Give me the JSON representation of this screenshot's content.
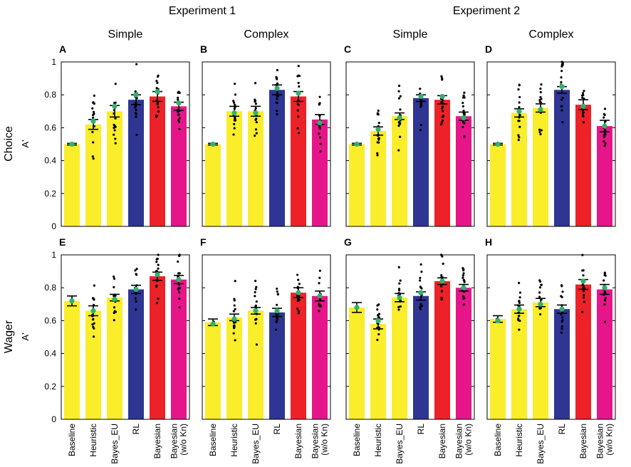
{
  "figure": {
    "experiment_titles": [
      "Experiment 1",
      "Experiment 2"
    ],
    "row_labels": [
      "Choice",
      "Wager"
    ],
    "y_axis_label": "A'",
    "y_ticks": [
      "0",
      "0.2",
      "0.4",
      "0.6",
      "0.8",
      "1"
    ],
    "categories": [
      "Baseline",
      "Heuristic",
      "Bayes_EU",
      "RL",
      "Bayesian",
      "Bayesian (w/o Kn)"
    ],
    "category_lines": [
      [
        "Baseline"
      ],
      [
        "Heuristic"
      ],
      [
        "Bayes_EU"
      ],
      [
        "RL"
      ],
      [
        "Bayesian"
      ],
      [
        "Bayesian",
        "(w/o Kn)"
      ]
    ]
  },
  "colors": {
    "yellow": "#FAED2A",
    "blue": "#2E3592",
    "red": "#EC2228",
    "magenta": "#E6168A",
    "green_marker": "#2DB36B",
    "dots": "#000000"
  },
  "chart_data": [
    {
      "panel": "A",
      "type": "bar",
      "experiment": "Experiment 1",
      "condition": "Simple",
      "measure": "Choice",
      "ylim": [
        0,
        1
      ],
      "ylabel": "A'",
      "categories": [
        "Baseline",
        "Heuristic",
        "Bayes_EU",
        "RL",
        "Bayesian",
        "Bayesian (w/o Kn)"
      ],
      "values": [
        0.5,
        0.62,
        0.7,
        0.77,
        0.79,
        0.73
      ],
      "errors": [
        0.005,
        0.03,
        0.035,
        0.03,
        0.03,
        0.025
      ],
      "medians": [
        0.5,
        0.64,
        0.73,
        0.8,
        0.82,
        0.75
      ]
    },
    {
      "panel": "B",
      "type": "bar",
      "experiment": "Experiment 1",
      "condition": "Complex",
      "measure": "Choice",
      "ylim": [
        0,
        1
      ],
      "ylabel": "A'",
      "categories": [
        "Baseline",
        "Heuristic",
        "Bayes_EU",
        "RL",
        "Bayesian",
        "Bayesian (w/o Kn)"
      ],
      "values": [
        0.5,
        0.7,
        0.7,
        0.83,
        0.79,
        0.65
      ],
      "errors": [
        0.005,
        0.03,
        0.03,
        0.03,
        0.03,
        0.03
      ],
      "medians": [
        0.5,
        0.69,
        0.69,
        0.84,
        0.81,
        0.63
      ]
    },
    {
      "panel": "C",
      "type": "bar",
      "experiment": "Experiment 2",
      "condition": "Simple",
      "measure": "Choice",
      "ylim": [
        0,
        1
      ],
      "ylabel": "A'",
      "categories": [
        "Baseline",
        "Heuristic",
        "Bayes_EU",
        "RL",
        "Bayesian",
        "Bayesian (w/o Kn)"
      ],
      "values": [
        0.5,
        0.58,
        0.67,
        0.78,
        0.77,
        0.67
      ],
      "errors": [
        0.005,
        0.025,
        0.02,
        0.02,
        0.025,
        0.025
      ],
      "medians": [
        0.5,
        0.59,
        0.66,
        0.79,
        0.79,
        0.66
      ]
    },
    {
      "panel": "D",
      "type": "bar",
      "experiment": "Experiment 2",
      "condition": "Complex",
      "measure": "Choice",
      "ylim": [
        0,
        1
      ],
      "ylabel": "A'",
      "categories": [
        "Baseline",
        "Heuristic",
        "Bayes_EU",
        "RL",
        "Bayesian",
        "Bayesian (w/o Kn)"
      ],
      "values": [
        0.5,
        0.69,
        0.72,
        0.83,
        0.74,
        0.61
      ],
      "errors": [
        0.005,
        0.025,
        0.025,
        0.02,
        0.03,
        0.035
      ],
      "medians": [
        0.5,
        0.7,
        0.71,
        0.85,
        0.73,
        0.61
      ]
    },
    {
      "panel": "E",
      "type": "bar",
      "experiment": "Experiment 1",
      "condition": "Simple",
      "measure": "Wager",
      "ylim": [
        0,
        1
      ],
      "ylabel": "A'",
      "categories": [
        "Baseline",
        "Heuristic",
        "Bayes_EU",
        "RL",
        "Bayesian",
        "Bayesian (w/o Kn)"
      ],
      "values": [
        0.72,
        0.66,
        0.74,
        0.79,
        0.87,
        0.85
      ],
      "errors": [
        0.03,
        0.03,
        0.02,
        0.025,
        0.025,
        0.025
      ],
      "medians": [
        0.72,
        0.66,
        0.73,
        0.79,
        0.88,
        0.85
      ]
    },
    {
      "panel": "F",
      "type": "bar",
      "experiment": "Experiment 1",
      "condition": "Complex",
      "measure": "Wager",
      "ylim": [
        0,
        1
      ],
      "ylabel": "A'",
      "categories": [
        "Baseline",
        "Heuristic",
        "Bayes_EU",
        "RL",
        "Bayesian",
        "Bayesian (w/o Kn)"
      ],
      "values": [
        0.59,
        0.62,
        0.66,
        0.65,
        0.77,
        0.75
      ],
      "errors": [
        0.02,
        0.02,
        0.02,
        0.025,
        0.03,
        0.03
      ],
      "medians": [
        0.58,
        0.61,
        0.66,
        0.66,
        0.77,
        0.75
      ]
    },
    {
      "panel": "G",
      "type": "bar",
      "experiment": "Experiment 2",
      "condition": "Simple",
      "measure": "Wager",
      "ylim": [
        0,
        1
      ],
      "ylabel": "A'",
      "categories": [
        "Baseline",
        "Heuristic",
        "Bayes_EU",
        "RL",
        "Bayesian",
        "Bayesian (w/o Kn)"
      ],
      "values": [
        0.68,
        0.58,
        0.74,
        0.75,
        0.84,
        0.8
      ],
      "errors": [
        0.03,
        0.03,
        0.025,
        0.025,
        0.02,
        0.02
      ],
      "medians": [
        0.68,
        0.6,
        0.74,
        0.77,
        0.84,
        0.8
      ]
    },
    {
      "panel": "H",
      "type": "bar",
      "experiment": "Experiment 2",
      "condition": "Complex",
      "measure": "Wager",
      "ylim": [
        0,
        1
      ],
      "ylabel": "A'",
      "categories": [
        "Baseline",
        "Heuristic",
        "Bayes_EU",
        "RL",
        "Bayesian",
        "Bayesian (w/o Kn)"
      ],
      "values": [
        0.61,
        0.67,
        0.71,
        0.67,
        0.82,
        0.79
      ],
      "errors": [
        0.02,
        0.025,
        0.025,
        0.025,
        0.03,
        0.03
      ],
      "medians": [
        0.6,
        0.67,
        0.7,
        0.67,
        0.84,
        0.8
      ]
    }
  ]
}
